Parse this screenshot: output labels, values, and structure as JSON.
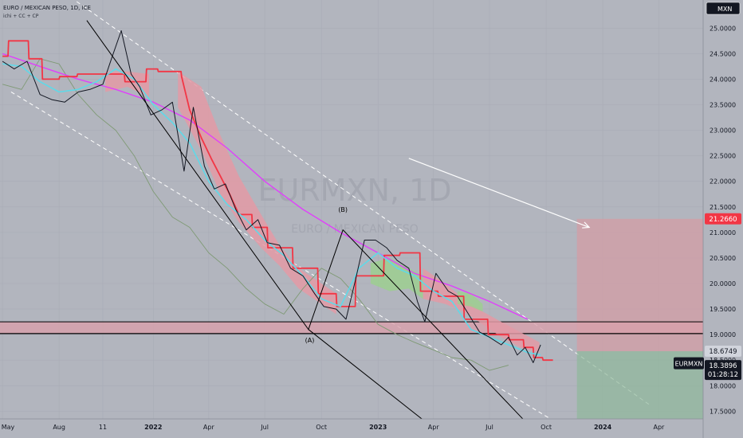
{
  "chart_data": {
    "type": "line",
    "title": "EURO / MEXICAN PESO, 1D, ICE",
    "indicator_legend": "ichi + CC + CP",
    "watermark": {
      "symbol": "EURMXN, 1D",
      "description": "EURO / MEXICAN PESO"
    },
    "currency_badge": "MXN",
    "symbol_label": "EURMXN",
    "last_price": "18.3896",
    "countdown": "01:28:12",
    "target_label": "21.2660",
    "entry_label": "18.6749",
    "x_ticks": [
      "May",
      "Aug",
      "11",
      "2022",
      "Apr",
      "Jul",
      "Oct",
      "2023",
      "Apr",
      "Jul",
      "Oct",
      "2024",
      "Apr"
    ],
    "x_tick_dates": [
      "2021-05-01",
      "2021-08-01",
      "2021-10-11",
      "2022-01-01",
      "2022-04-01",
      "2022-07-01",
      "2022-10-01",
      "2023-01-01",
      "2023-04-01",
      "2023-07-01",
      "2023-10-01",
      "2024-01-01",
      "2024-04-01"
    ],
    "y_ticks": [
      "17.5000",
      "18.0000",
      "18.5000",
      "19.0000",
      "19.5000",
      "20.0000",
      "20.5000",
      "21.0000",
      "21.5000",
      "22.0000",
      "22.5000",
      "23.0000",
      "23.5000",
      "24.0000",
      "24.5000",
      "25.0000"
    ],
    "ylim": [
      17.35,
      25.55
    ],
    "xlim": [
      "2021-04-27",
      "2024-06-12"
    ],
    "colors": {
      "background": "#b2b5be",
      "price": "#131722",
      "conversion_line": "#5fd9e8",
      "base_line": "#f23645",
      "long_ma": "#e040fb",
      "lagging_span": "#7f9a75",
      "cloud_bearish": "#e39aa6",
      "cloud_bullish": "#9ccf91",
      "channel": "#ffffff",
      "arrow": "#ffffff",
      "zone": "#d8a0ab",
      "target_zone": "#cfa0a8",
      "stop_zone": "#8fb89a"
    },
    "series": [
      {
        "role": "price",
        "x": [
          "2021-05-01",
          "2021-05-20",
          "2021-06-10",
          "2021-07-01",
          "2021-07-20",
          "2021-08-10",
          "2021-09-01",
          "2021-09-20",
          "2021-10-11",
          "2021-10-25",
          "2021-11-10",
          "2021-11-26",
          "2021-12-10",
          "2021-12-28",
          "2022-01-15",
          "2022-02-01",
          "2022-02-20",
          "2022-03-07",
          "2022-03-25",
          "2022-04-10",
          "2022-04-28",
          "2022-05-15",
          "2022-06-01",
          "2022-06-20",
          "2022-07-05",
          "2022-07-25",
          "2022-08-12",
          "2022-09-01",
          "2022-09-20",
          "2022-10-05",
          "2022-10-25",
          "2022-11-10",
          "2022-11-25",
          "2022-12-10",
          "2022-12-28",
          "2023-01-15",
          "2023-02-01",
          "2023-02-20",
          "2023-03-06",
          "2023-03-18",
          "2023-04-05",
          "2023-04-25",
          "2023-05-10",
          "2023-05-28",
          "2023-06-15",
          "2023-07-01",
          "2023-07-20",
          "2023-08-01",
          "2023-08-15",
          "2023-08-28",
          "2023-09-10",
          "2023-09-22"
        ],
        "y": [
          24.35,
          24.2,
          24.35,
          23.7,
          23.6,
          23.55,
          23.75,
          23.8,
          23.9,
          24.4,
          24.95,
          24.1,
          23.85,
          23.3,
          23.4,
          23.55,
          22.2,
          23.45,
          22.3,
          21.85,
          21.95,
          21.45,
          21.05,
          21.25,
          20.8,
          20.75,
          20.3,
          20.15,
          19.8,
          19.55,
          19.5,
          19.3,
          20.05,
          20.85,
          20.85,
          20.7,
          20.45,
          20.3,
          19.65,
          19.25,
          20.2,
          19.85,
          19.75,
          19.4,
          19.05,
          18.95,
          18.8,
          18.95,
          18.6,
          18.75,
          18.45,
          18.8
        ]
      },
      {
        "role": "conversion_line",
        "x": [
          "2021-05-01",
          "2021-06-01",
          "2021-07-01",
          "2021-08-01",
          "2021-09-01",
          "2021-10-01",
          "2021-11-01",
          "2021-12-01",
          "2022-01-01",
          "2022-02-01",
          "2022-03-01",
          "2022-04-01",
          "2022-05-01",
          "2022-06-01",
          "2022-07-01",
          "2022-08-01",
          "2022-09-01",
          "2022-10-01",
          "2022-11-01",
          "2022-12-01",
          "2023-01-01",
          "2023-02-01",
          "2023-03-01",
          "2023-04-01",
          "2023-05-01",
          "2023-06-01",
          "2023-07-01",
          "2023-08-01",
          "2023-09-01",
          "2023-09-22"
        ],
        "y": [
          24.3,
          24.25,
          23.95,
          23.75,
          23.8,
          23.95,
          24.2,
          24.0,
          23.5,
          23.15,
          22.75,
          22.0,
          21.55,
          21.25,
          20.85,
          20.55,
          20.15,
          19.7,
          19.55,
          20.3,
          20.6,
          20.3,
          20.15,
          19.85,
          19.65,
          19.1,
          18.95,
          18.8,
          18.65,
          18.6
        ]
      },
      {
        "role": "base_line",
        "x": [
          "2021-05-01",
          "2021-05-10",
          "2021-05-11",
          "2021-06-12",
          "2021-06-13",
          "2021-07-04",
          "2021-07-05",
          "2021-08-01",
          "2021-08-02",
          "2021-08-30",
          "2021-08-31",
          "2021-11-15",
          "2021-11-16",
          "2021-12-20",
          "2021-12-21",
          "2022-01-08",
          "2022-01-09",
          "2022-02-15",
          "2022-02-16",
          "2022-03-01",
          "2022-03-20",
          "2022-04-05",
          "2022-04-20",
          "2022-05-05",
          "2022-05-20",
          "2022-06-10",
          "2022-06-11",
          "2022-07-05",
          "2022-07-06",
          "2022-08-15",
          "2022-08-16",
          "2022-09-25",
          "2022-09-26",
          "2022-10-25",
          "2022-10-26",
          "2022-11-25",
          "2022-11-26",
          "2023-01-10",
          "2023-01-11",
          "2023-02-05",
          "2023-02-06",
          "2023-03-10",
          "2023-03-11",
          "2023-04-08",
          "2023-04-09",
          "2023-05-20",
          "2023-05-21",
          "2023-06-28",
          "2023-06-29",
          "2023-08-01",
          "2023-08-02",
          "2023-08-25",
          "2023-08-26",
          "2023-09-10",
          "2023-09-11",
          "2023-09-25",
          "2023-09-26",
          "2023-10-12"
        ],
        "y": [
          24.45,
          24.45,
          24.75,
          24.75,
          24.4,
          24.4,
          24.0,
          24.0,
          24.05,
          24.05,
          24.1,
          24.1,
          23.95,
          23.95,
          24.2,
          24.2,
          24.15,
          24.15,
          24.05,
          23.4,
          22.85,
          22.45,
          22.1,
          21.75,
          21.35,
          21.35,
          21.1,
          21.1,
          20.7,
          20.7,
          20.3,
          20.3,
          19.8,
          19.8,
          19.55,
          19.55,
          20.15,
          20.15,
          20.55,
          20.55,
          20.6,
          20.6,
          19.85,
          19.85,
          19.75,
          19.75,
          19.3,
          19.3,
          19.0,
          19.0,
          18.9,
          18.9,
          18.75,
          18.75,
          18.55,
          18.55,
          18.5,
          18.5
        ]
      },
      {
        "role": "long_ma",
        "x": [
          "2021-05-01",
          "2021-07-01",
          "2021-09-01",
          "2021-11-01",
          "2022-01-01",
          "2022-03-01",
          "2022-05-01",
          "2022-07-01",
          "2022-09-01",
          "2022-11-01",
          "2023-01-01",
          "2023-03-01",
          "2023-05-01",
          "2023-07-01",
          "2023-09-01"
        ],
        "y": [
          24.5,
          24.25,
          24.0,
          23.8,
          23.55,
          23.2,
          22.65,
          22.0,
          21.45,
          21.0,
          20.6,
          20.2,
          19.95,
          19.65,
          19.3
        ]
      },
      {
        "role": "lagging_span",
        "x": [
          "2021-05-01",
          "2021-06-01",
          "2021-07-01",
          "2021-08-01",
          "2021-09-01",
          "2021-10-01",
          "2021-11-01",
          "2021-12-01",
          "2022-01-01",
          "2022-02-01",
          "2022-03-01",
          "2022-04-01",
          "2022-05-01",
          "2022-06-01",
          "2022-07-01",
          "2022-08-01",
          "2022-09-01",
          "2022-10-01",
          "2022-11-01",
          "2022-12-01",
          "2023-01-01",
          "2023-02-01",
          "2023-03-01",
          "2023-04-01",
          "2023-05-01",
          "2023-06-01",
          "2023-07-01",
          "2023-08-01"
        ],
        "y": [
          23.9,
          23.8,
          24.4,
          24.3,
          23.7,
          23.3,
          23.0,
          22.5,
          21.8,
          21.3,
          21.1,
          20.6,
          20.3,
          19.9,
          19.6,
          19.4,
          19.9,
          20.3,
          20.1,
          19.7,
          19.2,
          19.0,
          18.85,
          18.7,
          18.55,
          18.5,
          18.3,
          18.4
        ]
      }
    ],
    "cloud": [
      {
        "color": "bearish",
        "x": [
          "2021-10-15",
          "2021-11-20",
          "2021-12-25"
        ],
        "top": [
          24.15,
          24.15,
          24.1
        ],
        "bottom": [
          23.75,
          23.85,
          23.65
        ]
      },
      {
        "color": "bearish",
        "x": [
          "2022-02-10",
          "2022-03-20",
          "2022-04-20",
          "2022-05-20",
          "2022-06-25",
          "2022-07-25",
          "2022-08-25",
          "2022-09-25",
          "2022-10-25"
        ],
        "top": [
          24.15,
          23.85,
          22.9,
          22.1,
          21.35,
          20.75,
          20.3,
          20.05,
          19.8
        ],
        "bottom": [
          23.45,
          22.6,
          21.75,
          21.2,
          20.7,
          20.35,
          19.9,
          19.65,
          19.4
        ]
      },
      {
        "color": "bullish",
        "x": [
          "2022-12-20",
          "2023-01-20",
          "2023-02-20",
          "2023-03-15"
        ],
        "top": [
          20.4,
          20.5,
          20.3,
          20.15
        ],
        "bottom": [
          20.0,
          19.85,
          19.9,
          19.7
        ]
      },
      {
        "color": "bearish",
        "x": [
          "2023-03-15",
          "2023-04-20",
          "2023-05-20",
          "2023-06-20",
          "2023-07-20",
          "2023-08-20",
          "2023-09-20"
        ],
        "top": [
          20.3,
          20.0,
          19.7,
          19.45,
          19.25,
          19.05,
          18.85
        ],
        "bottom": [
          19.7,
          19.6,
          19.45,
          19.2,
          18.95,
          18.75,
          18.65
        ]
      },
      {
        "color": "bullish",
        "x": [
          "2023-05-10",
          "2023-06-01",
          "2023-06-20"
        ],
        "top": [
          19.85,
          19.8,
          19.6
        ],
        "bottom": [
          19.6,
          19.55,
          19.45
        ]
      }
    ],
    "channel": [
      {
        "x": [
          "2021-08-20",
          "2024-03-20"
        ],
        "y": [
          25.6,
          17.6
        ]
      },
      {
        "x": [
          "2021-05-15",
          "2024-01-05"
        ],
        "y": [
          23.75,
          16.7
        ]
      }
    ],
    "support_zone": {
      "top": 19.25,
      "bottom": 19.02
    },
    "wave_lines": [
      {
        "x": [
          "2021-09-15",
          "2022-09-10",
          "2022-11-05",
          "2023-08-28"
        ],
        "y": [
          25.15,
          19.1,
          21.05,
          17.3
        ]
      },
      {
        "x": [
          "2022-09-10",
          "2023-05-10"
        ],
        "y": [
          19.1,
          16.8
        ]
      }
    ],
    "wave_labels": [
      {
        "text": "(A)",
        "x": "2022-09-12",
        "y": 18.85
      },
      {
        "text": "(B)",
        "x": "2022-11-05",
        "y": 21.4
      }
    ],
    "projection_arrow": {
      "x": [
        "2023-02-20",
        "2023-12-10"
      ],
      "y": [
        22.45,
        21.1
      ]
    },
    "position": {
      "x_start": "2023-11-20",
      "x_end": "2024-06-12",
      "target": 21.266,
      "entry": 18.6749,
      "stop": 17.35
    }
  }
}
